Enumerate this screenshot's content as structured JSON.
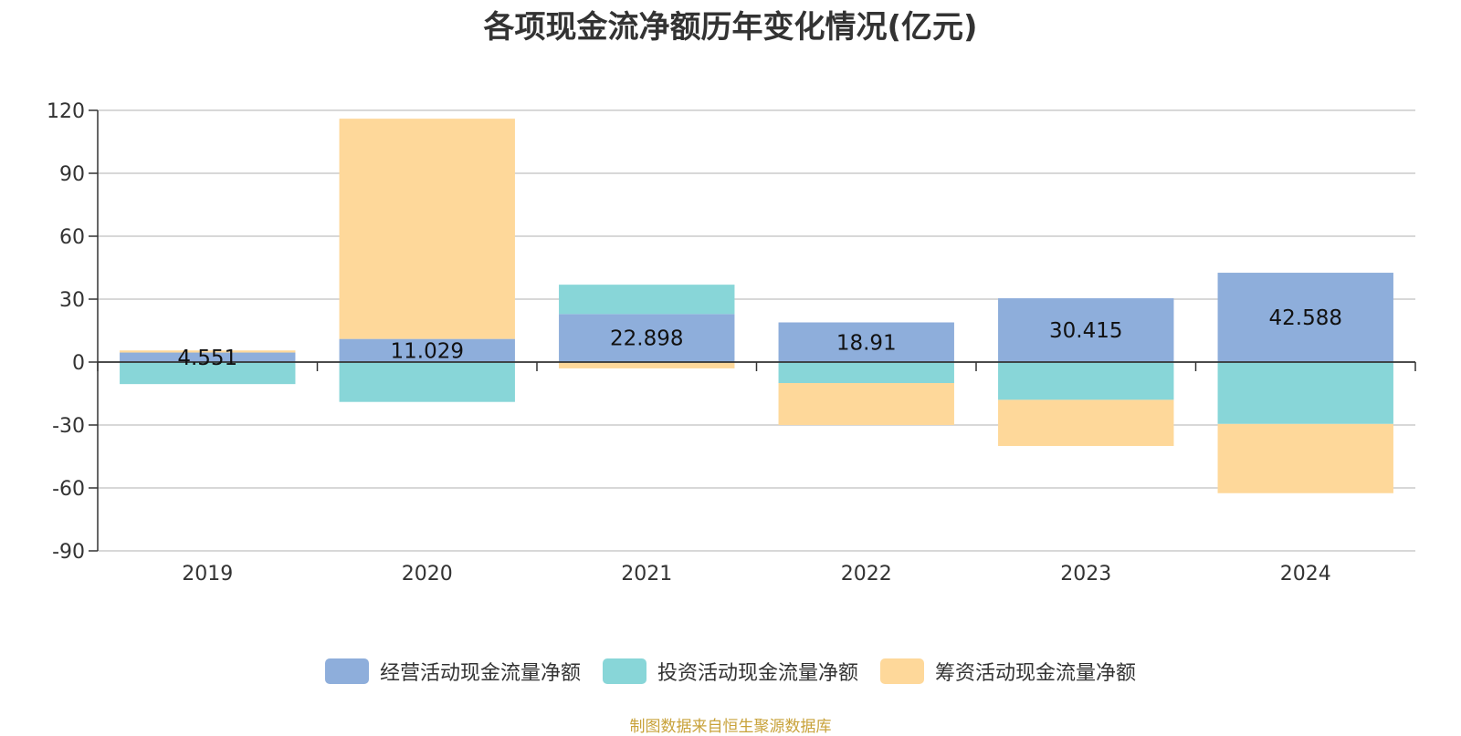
{
  "chart_data": {
    "type": "bar",
    "stacked": true,
    "title": "各项现金流净额历年变化情况(亿元)",
    "categories": [
      "2019",
      "2020",
      "2021",
      "2022",
      "2023",
      "2024"
    ],
    "ylim": [
      -90,
      120
    ],
    "yticks": [
      120,
      90,
      60,
      30,
      0,
      -30,
      -60,
      -90
    ],
    "grid": true,
    "legend_position": "bottom",
    "series": [
      {
        "name": "经营活动现金流量净额",
        "color": "#8eaedb",
        "values": [
          4.551,
          11.029,
          22.898,
          18.91,
          30.415,
          42.588
        ],
        "labels": [
          "4.551",
          "11.029",
          "22.898",
          "18.91",
          "30.415",
          "42.588"
        ]
      },
      {
        "name": "投资活动现金流量净额",
        "color": "#88d6d8",
        "values": [
          -10.5,
          -19.0,
          14.0,
          -10.0,
          -18.0,
          -29.5
        ]
      },
      {
        "name": "筹资活动现金流量净额",
        "color": "#fed89a",
        "values": [
          1.0,
          105.0,
          -3.0,
          -20.0,
          -22.0,
          -33.0
        ]
      }
    ]
  },
  "source_note": "制图数据来自恒生聚源数据库"
}
